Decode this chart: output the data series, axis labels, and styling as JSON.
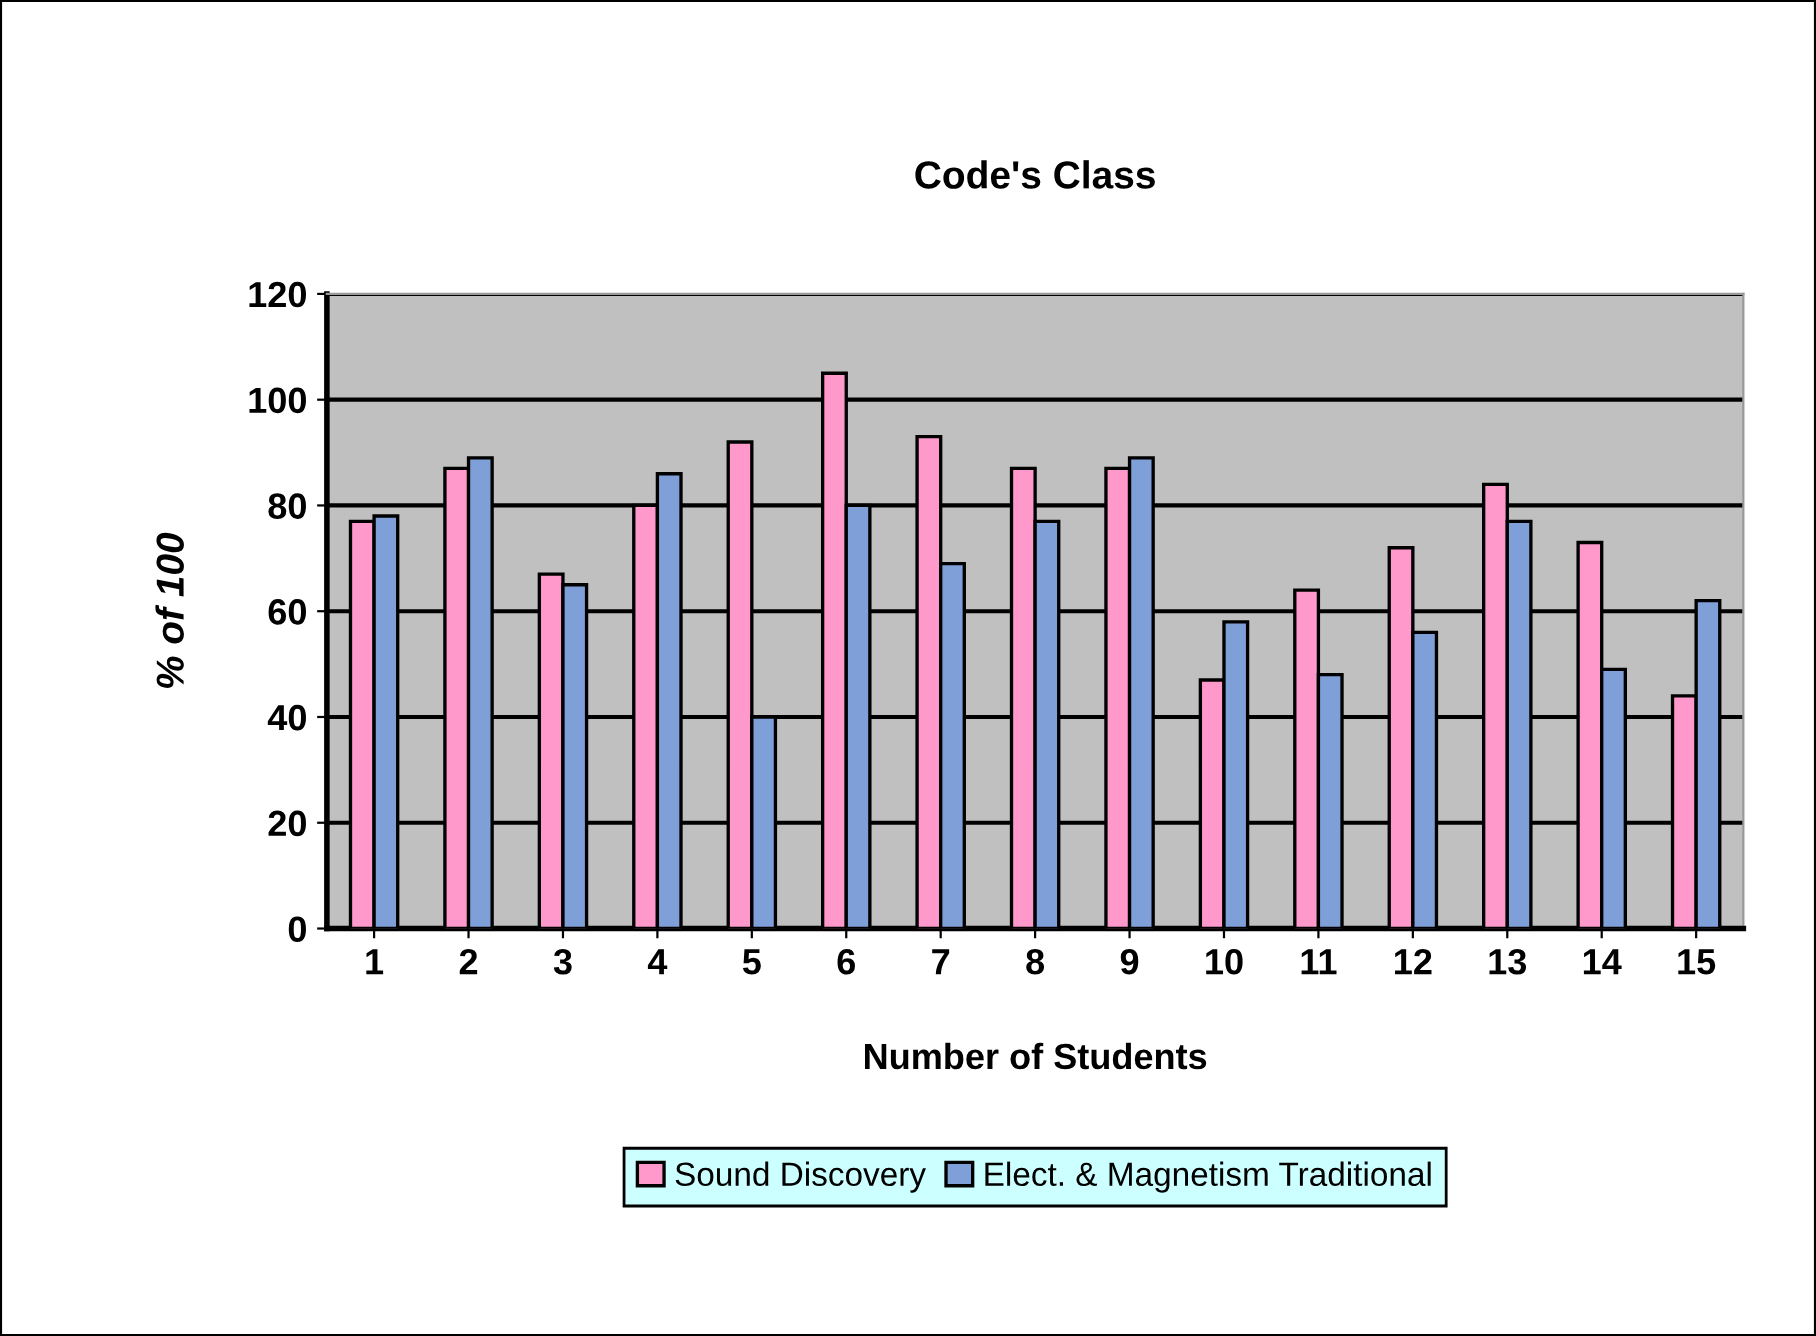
{
  "chart_data": {
    "type": "bar",
    "title": "Code's Class",
    "xlabel": "Number of Students",
    "ylabel": "% of 100",
    "categories": [
      "1",
      "2",
      "3",
      "4",
      "5",
      "6",
      "7",
      "8",
      "9",
      "10",
      "11",
      "12",
      "13",
      "14",
      "15"
    ],
    "series": [
      {
        "name": "Sound Discovery",
        "color": "#ff99cc",
        "values": [
          77,
          87,
          67,
          80,
          92,
          105,
          93,
          87,
          87,
          47,
          64,
          72,
          84,
          73,
          44
        ]
      },
      {
        "name": "Elect. & Magnetism Traditional",
        "color": "#7f9fd8",
        "values": [
          78,
          89,
          65,
          86,
          40,
          80,
          69,
          77,
          89,
          58,
          48,
          56,
          77,
          49,
          62
        ]
      }
    ],
    "ylim": [
      0,
      120
    ],
    "yticks": [
      0,
      20,
      40,
      60,
      80,
      100,
      120
    ],
    "grid": "y",
    "legend": "bottom"
  }
}
